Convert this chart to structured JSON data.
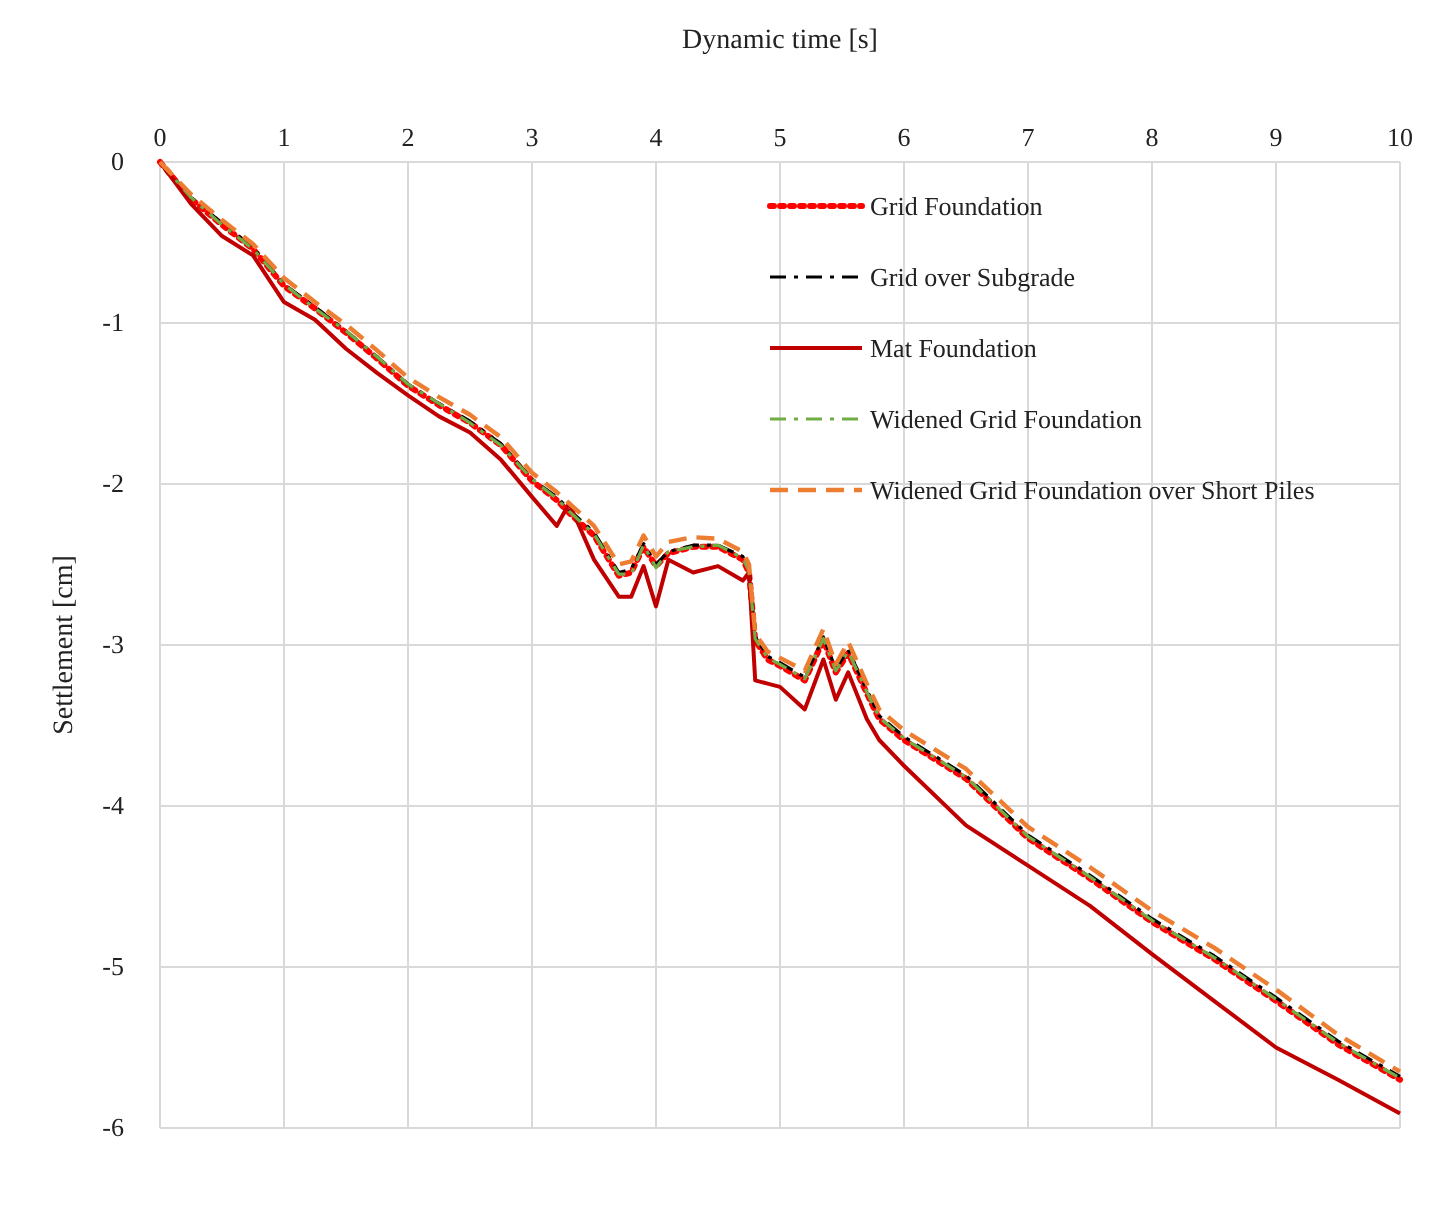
{
  "chart_data": {
    "type": "line",
    "xlabel": "Dynamic time [s]",
    "ylabel": "Settlement [cm]",
    "x": [
      0,
      0.25,
      0.5,
      0.75,
      1,
      1.25,
      1.5,
      1.75,
      2,
      2.25,
      2.5,
      2.75,
      3,
      3.2,
      3.3,
      3.5,
      3.7,
      3.8,
      3.9,
      4,
      4.1,
      4.3,
      4.5,
      4.7,
      4.75,
      4.8,
      4.9,
      5,
      5.2,
      5.35,
      5.45,
      5.55,
      5.7,
      5.8,
      6,
      6.5,
      7,
      7.5,
      8,
      8.5,
      9,
      9.5,
      10
    ],
    "series": [
      {
        "name": "Grid Foundation",
        "color": "#ff0000",
        "line_style": "dotted",
        "values": [
          0,
          -0.23,
          -0.39,
          -0.54,
          -0.77,
          -0.91,
          -1.06,
          -1.22,
          -1.39,
          -1.51,
          -1.62,
          -1.76,
          -1.98,
          -2.1,
          -2.18,
          -2.32,
          -2.57,
          -2.55,
          -2.39,
          -2.51,
          -2.43,
          -2.39,
          -2.39,
          -2.47,
          -2.55,
          -2.97,
          -3.09,
          -3.13,
          -3.22,
          -2.97,
          -3.17,
          -3.05,
          -3.3,
          -3.46,
          -3.59,
          -3.83,
          -4.2,
          -4.45,
          -4.72,
          -4.95,
          -5.21,
          -5.48,
          -5.7
        ]
      },
      {
        "name": "Grid over Subgrade",
        "color": "#000000",
        "line_style": "dashdot",
        "values": [
          0,
          -0.22,
          -0.38,
          -0.53,
          -0.76,
          -0.9,
          -1.05,
          -1.21,
          -1.38,
          -1.5,
          -1.61,
          -1.75,
          -1.97,
          -2.08,
          -2.16,
          -2.3,
          -2.55,
          -2.53,
          -2.37,
          -2.5,
          -2.42,
          -2.38,
          -2.38,
          -2.45,
          -2.53,
          -2.95,
          -3.07,
          -3.11,
          -3.2,
          -2.95,
          -3.15,
          -3.03,
          -3.28,
          -3.44,
          -3.57,
          -3.81,
          -4.18,
          -4.43,
          -4.7,
          -4.93,
          -5.19,
          -5.46,
          -5.68
        ]
      },
      {
        "name": "Mat Foundation",
        "color": "#c00000",
        "line_style": "solid",
        "values": [
          0,
          -0.26,
          -0.46,
          -0.58,
          -0.87,
          -0.98,
          -1.16,
          -1.31,
          -1.45,
          -1.58,
          -1.68,
          -1.85,
          -2.08,
          -2.26,
          -2.12,
          -2.47,
          -2.7,
          -2.7,
          -2.51,
          -2.76,
          -2.47,
          -2.55,
          -2.51,
          -2.6,
          -2.55,
          -3.22,
          -3.24,
          -3.26,
          -3.4,
          -3.09,
          -3.34,
          -3.17,
          -3.46,
          -3.59,
          -3.75,
          -4.12,
          -4.37,
          -4.62,
          -4.92,
          -5.21,
          -5.5,
          -5.7,
          -5.91
        ]
      },
      {
        "name": "Widened Grid Foundation",
        "color": "#70ad47",
        "line_style": "dashdot",
        "values": [
          0,
          -0.22,
          -0.39,
          -0.54,
          -0.76,
          -0.91,
          -1.05,
          -1.21,
          -1.38,
          -1.5,
          -1.62,
          -1.76,
          -1.97,
          -2.09,
          -2.17,
          -2.31,
          -2.56,
          -2.56,
          -2.38,
          -2.52,
          -2.42,
          -2.39,
          -2.38,
          -2.46,
          -2.54,
          -2.96,
          -3.08,
          -3.12,
          -3.21,
          -2.96,
          -3.16,
          -3.04,
          -3.29,
          -3.45,
          -3.58,
          -3.82,
          -4.19,
          -4.44,
          -4.71,
          -4.94,
          -5.2,
          -5.47,
          -5.69
        ]
      },
      {
        "name": "Widened Grid Foundation over Short Piles",
        "color": "#ed7d31",
        "line_style": "dashed",
        "values": [
          0,
          -0.2,
          -0.36,
          -0.51,
          -0.72,
          -0.87,
          -1.01,
          -1.17,
          -1.34,
          -1.46,
          -1.57,
          -1.71,
          -1.93,
          -2.05,
          -2.12,
          -2.26,
          -2.5,
          -2.48,
          -2.32,
          -2.45,
          -2.36,
          -2.33,
          -2.34,
          -2.42,
          -2.5,
          -2.93,
          -3.04,
          -3.08,
          -3.16,
          -2.9,
          -3.12,
          -2.98,
          -3.24,
          -3.4,
          -3.53,
          -3.77,
          -4.13,
          -4.38,
          -4.65,
          -4.88,
          -5.14,
          -5.42,
          -5.65
        ]
      }
    ],
    "xlim": [
      0,
      10
    ],
    "xticks": [
      0,
      1,
      2,
      3,
      4,
      5,
      6,
      7,
      8,
      9,
      10
    ],
    "ylim": [
      -6,
      0
    ],
    "yticks": [
      0,
      -1,
      -2,
      -3,
      -4,
      -5,
      -6
    ],
    "grid": true,
    "legend": "top right",
    "marker": "none"
  }
}
